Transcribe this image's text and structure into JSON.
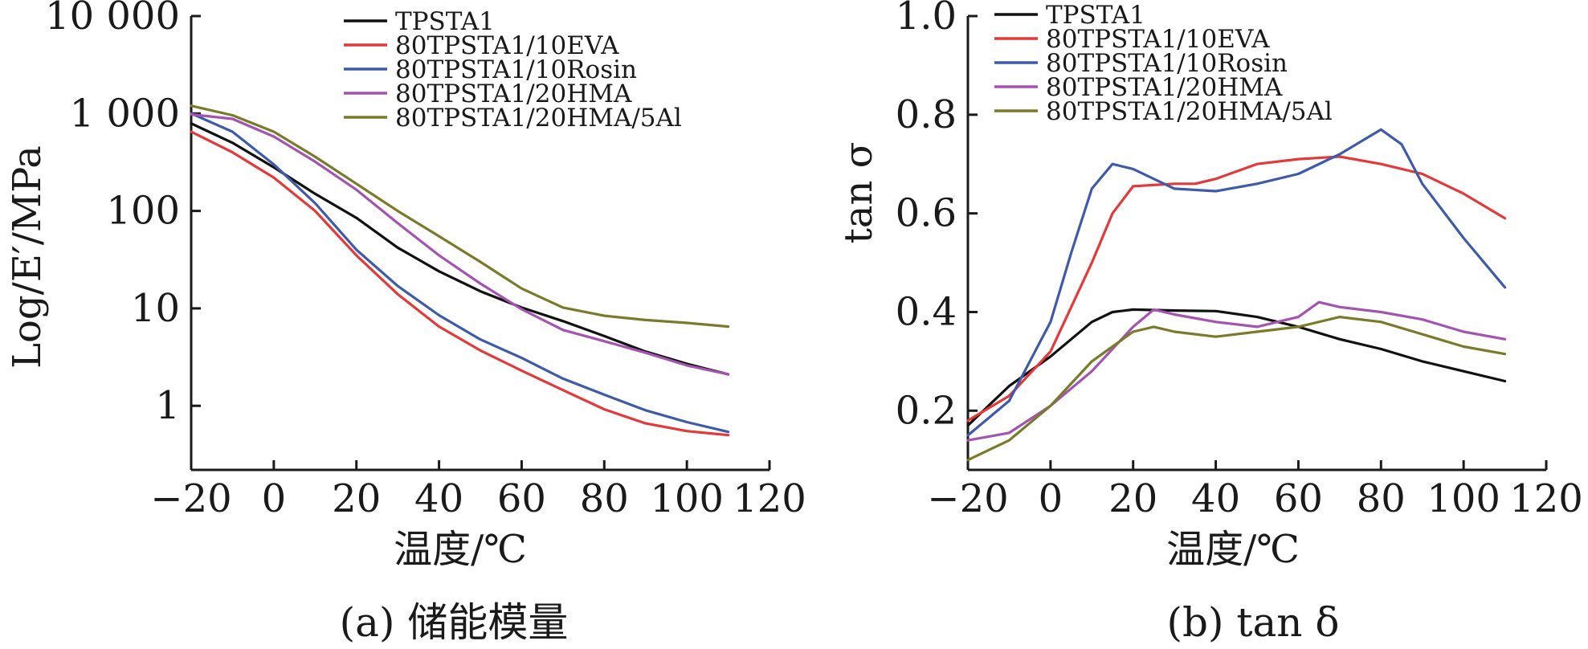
{
  "colors": {
    "TPSTA1": "#111111",
    "80TPSTA1/10EVA": "#e3393b",
    "80TPSTA1/10Rosin": "#3f5ba8",
    "80TPSTA1/20HMA": "#a454b0",
    "80TPSTA1/20HMA/5Al": "#7a7a2a"
  },
  "chart_data": [
    {
      "type": "line",
      "caption": "(a) 储能模量",
      "xlabel": "温度/℃",
      "ylabel": "Log/E′/MPa",
      "xlim": [
        -20,
        120
      ],
      "xticks": [
        "−20",
        "0",
        "20",
        "40",
        "60",
        "80",
        "100",
        "120"
      ],
      "xtick_values": [
        -20,
        0,
        20,
        40,
        60,
        80,
        100,
        120
      ],
      "yscale": "log",
      "ylim": [
        0.22,
        10000
      ],
      "yticks": [
        "1",
        "10",
        "100",
        "1 000",
        "10 000"
      ],
      "ytick_values": [
        1,
        10,
        100,
        1000,
        10000
      ],
      "legend": "top-right",
      "grid": false,
      "series": [
        {
          "name": "TPSTA1",
          "x": [
            -20,
            -10,
            0,
            10,
            20,
            30,
            40,
            50,
            60,
            70,
            80,
            90,
            100,
            110
          ],
          "y": [
            790,
            500,
            280,
            150,
            85,
            42,
            24,
            15,
            10.2,
            7.4,
            5.2,
            3.6,
            2.7,
            2.1
          ]
        },
        {
          "name": "80TPSTA1/10EVA",
          "x": [
            -20,
            -10,
            0,
            10,
            20,
            30,
            40,
            50,
            60,
            70,
            80,
            90,
            100,
            110
          ],
          "y": [
            650,
            400,
            220,
            100,
            35,
            14,
            6.5,
            3.7,
            2.3,
            1.45,
            0.92,
            0.66,
            0.55,
            0.5
          ]
        },
        {
          "name": "80TPSTA1/10Rosin",
          "x": [
            -20,
            -10,
            0,
            10,
            20,
            30,
            40,
            50,
            60,
            70,
            80,
            90,
            100,
            110
          ],
          "y": [
            1000,
            650,
            300,
            120,
            40,
            17,
            8.5,
            4.8,
            3.1,
            1.9,
            1.3,
            0.9,
            0.68,
            0.54
          ]
        },
        {
          "name": "80TPSTA1/20HMA",
          "x": [
            -20,
            -10,
            0,
            10,
            20,
            30,
            40,
            50,
            60,
            70,
            80,
            90,
            100,
            110
          ],
          "y": [
            980,
            880,
            580,
            320,
            165,
            75,
            35,
            18,
            9.8,
            6.0,
            4.6,
            3.5,
            2.6,
            2.1
          ]
        },
        {
          "name": "80TPSTA1/20HMA/5Al",
          "x": [
            -20,
            -10,
            0,
            10,
            20,
            30,
            40,
            50,
            60,
            70,
            80,
            90,
            100,
            110
          ],
          "y": [
            1200,
            960,
            650,
            360,
            190,
            100,
            55,
            30,
            16,
            10.2,
            8.4,
            7.6,
            7.1,
            6.5
          ]
        }
      ]
    },
    {
      "type": "line",
      "caption": "(b) tan δ",
      "xlabel": "温度/℃",
      "ylabel": "tan σ",
      "xlim": [
        -20,
        120
      ],
      "xticks": [
        "−20",
        "0",
        "20",
        "40",
        "60",
        "80",
        "100",
        "120"
      ],
      "xtick_values": [
        -20,
        0,
        20,
        40,
        60,
        80,
        100,
        120
      ],
      "yscale": "linear",
      "ylim": [
        0.08,
        1.0
      ],
      "yticks": [
        "0.2",
        "0.4",
        "0.6",
        "0.8",
        "1.0"
      ],
      "ytick_values": [
        0.2,
        0.4,
        0.6,
        0.8,
        1.0
      ],
      "legend": "top-left",
      "grid": false,
      "series": [
        {
          "name": "TPSTA1",
          "x": [
            -20,
            -10,
            0,
            10,
            15,
            20,
            30,
            40,
            50,
            60,
            70,
            80,
            90,
            100,
            110
          ],
          "y": [
            0.17,
            0.25,
            0.31,
            0.38,
            0.4,
            0.405,
            0.403,
            0.402,
            0.39,
            0.37,
            0.345,
            0.325,
            0.3,
            0.28,
            0.26
          ]
        },
        {
          "name": "80TPSTA1/10EVA",
          "x": [
            -20,
            -10,
            0,
            10,
            15,
            20,
            30,
            35,
            40,
            50,
            60,
            70,
            80,
            90,
            100,
            110
          ],
          "y": [
            0.18,
            0.23,
            0.32,
            0.5,
            0.6,
            0.655,
            0.66,
            0.66,
            0.67,
            0.7,
            0.71,
            0.715,
            0.7,
            0.68,
            0.64,
            0.59
          ]
        },
        {
          "name": "80TPSTA1/10Rosin",
          "x": [
            -20,
            -10,
            0,
            5,
            10,
            15,
            20,
            30,
            40,
            50,
            60,
            70,
            80,
            85,
            90,
            100,
            110
          ],
          "y": [
            0.15,
            0.22,
            0.38,
            0.52,
            0.65,
            0.7,
            0.69,
            0.65,
            0.645,
            0.66,
            0.68,
            0.72,
            0.77,
            0.74,
            0.66,
            0.55,
            0.45
          ]
        },
        {
          "name": "80TPSTA1/20HMA",
          "x": [
            -20,
            -10,
            0,
            10,
            20,
            25,
            30,
            40,
            50,
            60,
            65,
            70,
            80,
            90,
            100,
            110
          ],
          "y": [
            0.14,
            0.155,
            0.21,
            0.28,
            0.37,
            0.405,
            0.395,
            0.38,
            0.37,
            0.39,
            0.42,
            0.41,
            0.4,
            0.385,
            0.36,
            0.345
          ]
        },
        {
          "name": "80TPSTA1/20HMA/5Al",
          "x": [
            -20,
            -10,
            0,
            10,
            20,
            25,
            30,
            40,
            50,
            60,
            70,
            80,
            90,
            100,
            110
          ],
          "y": [
            0.1,
            0.14,
            0.21,
            0.3,
            0.36,
            0.37,
            0.36,
            0.35,
            0.36,
            0.37,
            0.39,
            0.38,
            0.355,
            0.33,
            0.315
          ]
        }
      ]
    }
  ]
}
